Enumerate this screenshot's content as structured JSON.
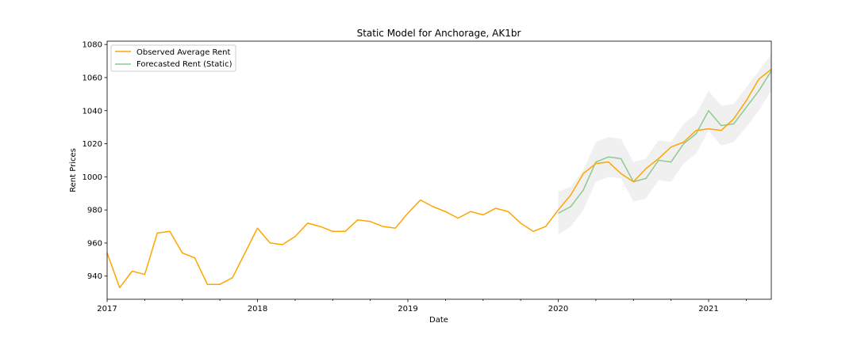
{
  "chart_data": {
    "type": "line",
    "title": "Static Model for Anchorage, AK1br",
    "xlabel": "Date",
    "ylabel": "Rent Prices",
    "xlim": [
      "2017-01",
      "2021-06"
    ],
    "ylim": [
      926,
      1082
    ],
    "x_ticks": [
      "2017",
      "2018",
      "2019",
      "2020",
      "2021"
    ],
    "y_ticks": [
      940,
      960,
      980,
      1000,
      1020,
      1040,
      1060,
      1080
    ],
    "grid": false,
    "legend_position": "upper-left",
    "colors": {
      "observed": "#ffa500",
      "forecast": "#8fc98f",
      "confidence_band": "#d3d3d3"
    },
    "series": [
      {
        "name": "Observed Average Rent",
        "style": "line",
        "x": [
          "2017-01",
          "2017-02",
          "2017-03",
          "2017-04",
          "2017-05",
          "2017-06",
          "2017-07",
          "2017-08",
          "2017-09",
          "2017-10",
          "2017-11",
          "2017-12",
          "2018-01",
          "2018-02",
          "2018-03",
          "2018-04",
          "2018-05",
          "2018-06",
          "2018-07",
          "2018-08",
          "2018-09",
          "2018-10",
          "2018-11",
          "2018-12",
          "2019-01",
          "2019-02",
          "2019-03",
          "2019-04",
          "2019-05",
          "2019-06",
          "2019-07",
          "2019-08",
          "2019-09",
          "2019-10",
          "2019-11",
          "2019-12",
          "2020-01",
          "2020-02",
          "2020-03",
          "2020-04",
          "2020-05",
          "2020-06",
          "2020-07",
          "2020-08",
          "2020-09",
          "2020-10",
          "2020-11",
          "2020-12",
          "2021-01",
          "2021-02",
          "2021-03",
          "2021-04",
          "2021-05",
          "2021-06"
        ],
        "values": [
          954,
          933,
          943,
          941,
          966,
          967,
          954,
          951,
          935,
          935,
          939,
          954,
          969,
          960,
          959,
          964,
          972,
          970,
          967,
          967,
          974,
          973,
          970,
          969,
          978,
          986,
          982,
          979,
          975,
          979,
          977,
          981,
          979,
          972,
          967,
          970,
          980,
          989,
          1002,
          1008,
          1009,
          1002,
          997,
          1005,
          1011,
          1018,
          1021,
          1028,
          1029,
          1028,
          1035,
          1046,
          1059,
          1065
        ]
      },
      {
        "name": "Forecasted Rent (Static)",
        "style": "line",
        "x": [
          "2020-01",
          "2020-02",
          "2020-03",
          "2020-04",
          "2020-05",
          "2020-06",
          "2020-07",
          "2020-08",
          "2020-09",
          "2020-10",
          "2020-11",
          "2020-12",
          "2021-01",
          "2021-02",
          "2021-03",
          "2021-04",
          "2021-05",
          "2021-06"
        ],
        "values": [
          978,
          982,
          992,
          1009,
          1012,
          1011,
          997,
          999,
          1010,
          1009,
          1020,
          1026,
          1040,
          1031,
          1032,
          1042,
          1052,
          1064
        ],
        "lower": [
          965,
          970,
          980,
          997,
          1000,
          999,
          985,
          987,
          998,
          997,
          1008,
          1014,
          1028,
          1019,
          1021,
          1030,
          1040,
          1052
        ],
        "upper": [
          991,
          994,
          1004,
          1021,
          1024,
          1023,
          1009,
          1011,
          1022,
          1021,
          1032,
          1038,
          1052,
          1043,
          1044,
          1054,
          1064,
          1074
        ]
      }
    ]
  }
}
